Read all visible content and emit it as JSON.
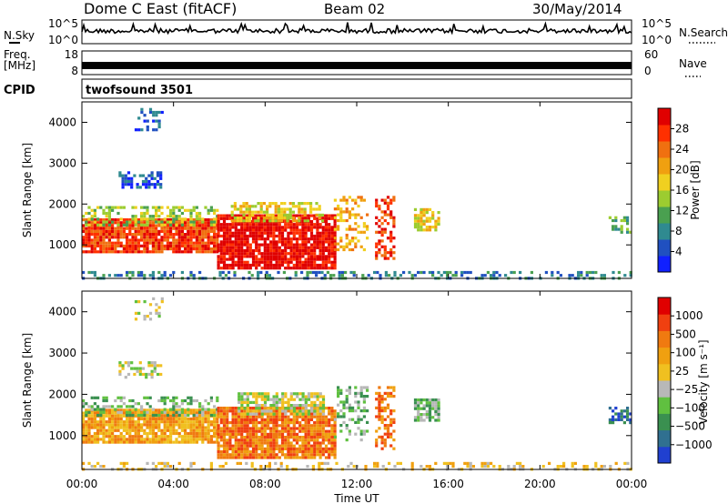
{
  "header": {
    "radar": "Dome C East (fitACF)",
    "beam": "Beam 02",
    "date": "30/May/2014"
  },
  "strips": {
    "nsky_label": "N.Sky",
    "nsearch_label": "N.Search",
    "sky_top": "10^5",
    "sky_bottom": "10^0",
    "freq_label_1": "Freq.",
    "freq_label_2": "[MHz]",
    "freq_top": "18",
    "freq_bottom": "8",
    "nave_label": "Nave",
    "nave_top": "60",
    "nave_bottom": "0",
    "cpid_label": "CPID",
    "cpid_value": "twofsound 3501"
  },
  "chart_data": [
    {
      "type": "heatmap",
      "quantity": "Power",
      "ylabel": "Slant Range [km]",
      "ylim": [
        180,
        4500
      ],
      "yticks": [
        "1000",
        "2000",
        "3000",
        "4000"
      ],
      "xlim_hours": [
        0,
        24
      ],
      "colorbar_title": "Power [dB]",
      "colorbar_ticks": [
        "4",
        "8",
        "12",
        "16",
        "20",
        "24",
        "28"
      ],
      "colorbar_colors": [
        "#1020ff",
        "#2050c0",
        "#2f8a90",
        "#4aa050",
        "#9ccc30",
        "#f0d020",
        "#f0a010",
        "#f07010",
        "#ff3000",
        "#e00000"
      ],
      "regions": [
        {
          "t0": 0.0,
          "t1": 5.9,
          "r0": 850,
          "r1": 1650,
          "level": 8,
          "density": 0.9
        },
        {
          "t0": 0.0,
          "t1": 5.9,
          "r0": 1500,
          "r1": 1950,
          "level": 4,
          "density": 0.5
        },
        {
          "t0": 5.9,
          "t1": 11.0,
          "r0": 450,
          "r1": 1750,
          "level": 9,
          "density": 0.9
        },
        {
          "t0": 6.5,
          "t1": 10.5,
          "r0": 1600,
          "r1": 2050,
          "level": 5,
          "density": 0.6
        },
        {
          "t0": 1.6,
          "t1": 3.4,
          "r0": 2400,
          "r1": 2800,
          "level": 1,
          "density": 0.55
        },
        {
          "t0": 2.3,
          "t1": 3.5,
          "r0": 3800,
          "r1": 4350,
          "level": 1,
          "density": 0.3
        },
        {
          "t0": 11.0,
          "t1": 12.4,
          "r0": 900,
          "r1": 2200,
          "level": 6,
          "density": 0.35
        },
        {
          "t0": 12.8,
          "t1": 13.6,
          "r0": 700,
          "r1": 2200,
          "level": 8,
          "density": 0.5
        },
        {
          "t0": 14.5,
          "t1": 15.6,
          "r0": 1350,
          "r1": 1900,
          "level": 5,
          "density": 0.7
        },
        {
          "t0": 23.0,
          "t1": 24.0,
          "r0": 1300,
          "r1": 1700,
          "level": 3,
          "density": 0.5
        }
      ],
      "ground_band": {
        "r0": 180,
        "r1": 360,
        "t1": 24.0,
        "level": 2,
        "density": 0.35
      }
    },
    {
      "type": "heatmap",
      "quantity": "Velocity",
      "ylabel": "Slant Range [km]",
      "ylim": [
        180,
        4500
      ],
      "yticks": [
        "1000",
        "2000",
        "3000",
        "4000"
      ],
      "xlim_hours": [
        0,
        24
      ],
      "xticks": [
        "00:00",
        "04:00",
        "08:00",
        "12:00",
        "16:00",
        "20:00",
        "00:00"
      ],
      "xlabel": "Time UT",
      "colorbar_title": "Velocity [m s⁻¹]",
      "colorbar_ticks": [
        "1000",
        "500",
        "100",
        "25",
        "−25",
        "−100",
        "−500",
        "−1000"
      ],
      "colorbar_colors": [
        "#2040d0",
        "#307090",
        "#3a9050",
        "#60c040",
        "#b8b8b8",
        "#f0c020",
        "#f0a010",
        "#f07a10",
        "#f04010",
        "#e00000"
      ],
      "regions": [
        {
          "t0": 0.0,
          "t1": 5.9,
          "r0": 850,
          "r1": 1650,
          "level": 6,
          "density": 0.9
        },
        {
          "t0": 0.0,
          "t1": 5.9,
          "r0": 1500,
          "r1": 1950,
          "level": 3,
          "density": 0.4
        },
        {
          "t0": 5.9,
          "t1": 11.0,
          "r0": 450,
          "r1": 1700,
          "level": 7,
          "density": 0.9
        },
        {
          "t0": 6.8,
          "t1": 10.5,
          "r0": 1550,
          "r1": 2050,
          "level": 4,
          "density": 0.7
        },
        {
          "t0": 1.6,
          "t1": 3.4,
          "r0": 2400,
          "r1": 2800,
          "level": 4,
          "density": 0.45
        },
        {
          "t0": 2.3,
          "t1": 3.5,
          "r0": 3800,
          "r1": 4350,
          "level": 4,
          "density": 0.3
        },
        {
          "t0": 11.0,
          "t1": 12.4,
          "r0": 900,
          "r1": 2200,
          "level": 3,
          "density": 0.35
        },
        {
          "t0": 12.8,
          "t1": 13.6,
          "r0": 700,
          "r1": 2200,
          "level": 7,
          "density": 0.5
        },
        {
          "t0": 14.5,
          "t1": 15.6,
          "r0": 1350,
          "r1": 1900,
          "level": 3,
          "density": 0.7
        },
        {
          "t0": 23.0,
          "t1": 24.0,
          "r0": 1300,
          "r1": 1700,
          "level": 1,
          "density": 0.5
        }
      ],
      "ground_band": {
        "r0": 180,
        "r1": 360,
        "t1": 24.0,
        "level": 5,
        "density": 0.3
      }
    }
  ]
}
